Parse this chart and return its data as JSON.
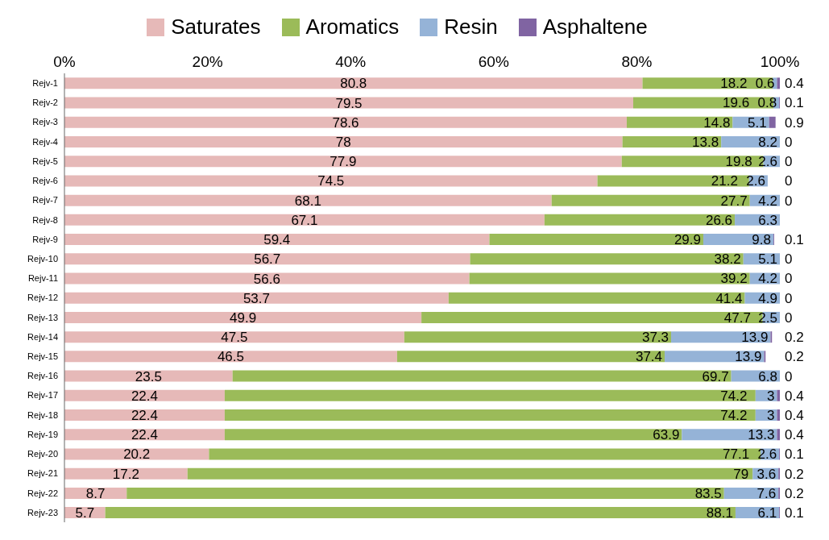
{
  "chart_data": {
    "type": "bar",
    "orientation": "horizontal",
    "stacked": true,
    "data_labels": true,
    "legend": "top",
    "grid": false,
    "categories": [
      "Rejv-1",
      "Rejv-2",
      "Rejv-3",
      "Rejv-4",
      "Rejv-5",
      "Rejv-6",
      "Rejv-7",
      "Rejv-8",
      "Rejv-9",
      "Rejv-10",
      "Rejv-11",
      "Rejv-12",
      "Rejv-13",
      "Rejv-14",
      "Rejv-15",
      "Rejv-16",
      "Rejv-17",
      "Rejv-18",
      "Rejv-19",
      "Rejv-20",
      "Rejv-21",
      "Rejv-22",
      "Rejv-23"
    ],
    "xlim": [
      0,
      100
    ],
    "xticks": [
      {
        "value": 0,
        "label": "0%"
      },
      {
        "value": 20,
        "label": "20%"
      },
      {
        "value": 40,
        "label": "40%"
      },
      {
        "value": 60,
        "label": "60%"
      },
      {
        "value": 80,
        "label": "80%"
      },
      {
        "value": 100,
        "label": "100%"
      }
    ],
    "series": [
      {
        "name": "Saturates",
        "color": "#e6b9b8",
        "values": [
          80.8,
          79.5,
          78.6,
          78,
          77.9,
          74.5,
          68.1,
          67.1,
          59.4,
          56.7,
          56.6,
          53.7,
          49.9,
          47.5,
          46.5,
          23.5,
          22.4,
          22.4,
          22.4,
          20.2,
          17.2,
          8.7,
          5.7
        ]
      },
      {
        "name": "Aromatics",
        "color": "#9bbb59",
        "values": [
          18.2,
          19.6,
          14.8,
          13.8,
          19.8,
          21.2,
          27.7,
          26.6,
          29.9,
          38.2,
          39.2,
          41.4,
          47.7,
          37.3,
          37.4,
          69.7,
          74.2,
          74.2,
          63.9,
          77.1,
          79,
          83.5,
          88.1
        ]
      },
      {
        "name": "Resin",
        "color": "#95b3d7",
        "values": [
          0.6,
          0.8,
          5.1,
          8.2,
          2.6,
          2.6,
          4.2,
          6.3,
          9.8,
          5.1,
          4.2,
          4.9,
          2.5,
          13.9,
          13.9,
          6.8,
          3,
          3,
          13.3,
          2.6,
          3.6,
          7.6,
          6.1
        ]
      },
      {
        "name": "Asphaltene",
        "color": "#8064a2",
        "values": [
          0.4,
          0.1,
          0.9,
          0,
          0,
          0,
          0,
          null,
          0.1,
          0,
          0,
          0,
          0,
          0.2,
          0.2,
          0,
          0.4,
          0.4,
          0.4,
          0.1,
          0.2,
          0.2,
          0.1
        ]
      }
    ]
  }
}
